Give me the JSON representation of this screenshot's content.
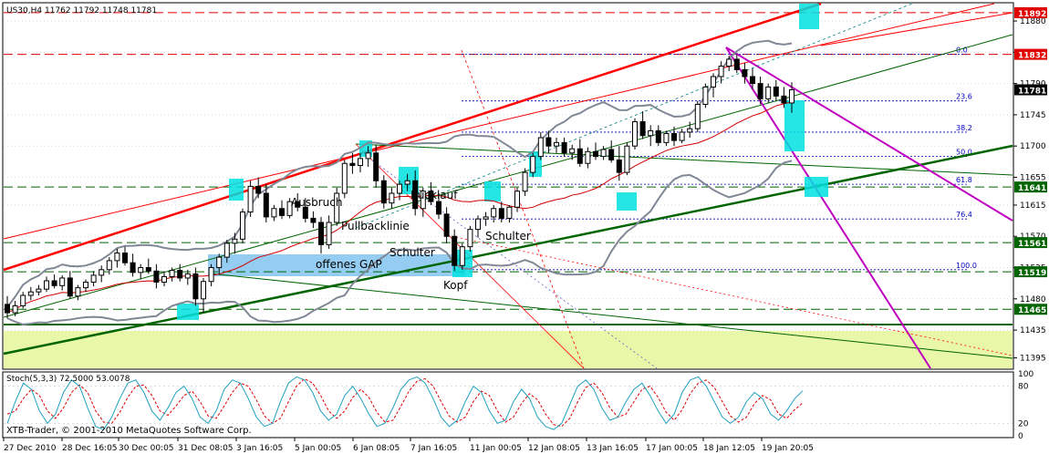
{
  "header": {
    "symbol_line": "US30,H4  11762 11792 11748 11781",
    "indicator_line": "Stoch(5,3,3) 72.5000 53.0078",
    "copyright": "XTB-Trader, © 2001-2010 MetaQuotes Software Corp."
  },
  "colors": {
    "background": "#ffffff",
    "frame": "#000000",
    "grid": "#c8c8c8",
    "candle_up": "#ffffff",
    "candle_down": "#000000",
    "resistance_red": "#ff0000",
    "support_green": "#006400",
    "trend_magenta": "#c000c0",
    "bollinger": "#808896",
    "highlight_cyan": "#00e0e0",
    "gap_blue": "#88c8f0",
    "zone_yellow": "#e8f8a8",
    "fib_blue": "#0000c0",
    "stoch_main": "#20a0c0",
    "stoch_signal": "#e00000"
  },
  "chart_data": {
    "type": "candlestick",
    "symbol": "US30",
    "timeframe": "H4",
    "ohlc_last": {
      "open": 11762,
      "high": 11792,
      "low": 11748,
      "close": 11781
    },
    "ylim": [
      11380,
      11905
    ],
    "y_ticks": [
      11880,
      11835,
      11790,
      11745,
      11700,
      11655,
      11615,
      11570,
      11525,
      11480,
      11435,
      11395
    ],
    "x_ticks": [
      "27 Dec 2010",
      "28 Dec 16:05",
      "30 Dec 00:05",
      "31 Dec 08:05",
      "3 Jan 16:05",
      "5 Jan 00:05",
      "6 Jan 08:05",
      "7 Jan 16:05",
      "11 Jan 00:05",
      "12 Jan 08:05",
      "13 Jan 16:05",
      "17 Jan 00:05",
      "18 Jan 12:05",
      "19 Jan 20:05"
    ],
    "price_levels": [
      {
        "label": "11892",
        "value": 11892,
        "color": "#e00000"
      },
      {
        "label": "11832",
        "value": 11832,
        "color": "#e00000"
      },
      {
        "label": "11781",
        "value": 11781,
        "color": "#000000"
      },
      {
        "label": "11641",
        "value": 11641,
        "color": "#006400"
      },
      {
        "label": "11561",
        "value": 11561,
        "color": "#006400"
      },
      {
        "label": "11519",
        "value": 11519,
        "color": "#006400"
      },
      {
        "label": "11465",
        "value": 11465,
        "color": "#006400"
      }
    ],
    "fibonacci": [
      {
        "label": "0.0",
        "value": 11832
      },
      {
        "label": "23.6",
        "value": 11765
      },
      {
        "label": "38.2",
        "value": 11720
      },
      {
        "label": "50.0",
        "value": 11685
      },
      {
        "label": "61.8",
        "value": 11645
      },
      {
        "label": "76.4",
        "value": 11595
      },
      {
        "label": "100.0",
        "value": 11522
      }
    ],
    "candles": [
      [
        11472,
        11484,
        11452,
        11460
      ],
      [
        11460,
        11477,
        11455,
        11470
      ],
      [
        11470,
        11490,
        11466,
        11485
      ],
      [
        11485,
        11497,
        11478,
        11490
      ],
      [
        11490,
        11500,
        11485,
        11494
      ],
      [
        11494,
        11512,
        11490,
        11506
      ],
      [
        11506,
        11515,
        11495,
        11499
      ],
      [
        11499,
        11514,
        11492,
        11510
      ],
      [
        11510,
        11520,
        11480,
        11484
      ],
      [
        11484,
        11500,
        11478,
        11496
      ],
      [
        11496,
        11508,
        11490,
        11504
      ],
      [
        11504,
        11520,
        11498,
        11514
      ],
      [
        11514,
        11528,
        11504,
        11522
      ],
      [
        11522,
        11540,
        11515,
        11535
      ],
      [
        11535,
        11552,
        11525,
        11546
      ],
      [
        11546,
        11555,
        11528,
        11532
      ],
      [
        11532,
        11545,
        11512,
        11518
      ],
      [
        11518,
        11530,
        11508,
        11525
      ],
      [
        11525,
        11538,
        11516,
        11520
      ],
      [
        11520,
        11530,
        11495,
        11504
      ],
      [
        11504,
        11520,
        11498,
        11512
      ],
      [
        11512,
        11525,
        11505,
        11521
      ],
      [
        11521,
        11530,
        11505,
        11510
      ],
      [
        11510,
        11522,
        11500,
        11516
      ],
      [
        11516,
        11525,
        11470,
        11480
      ],
      [
        11480,
        11510,
        11460,
        11505
      ],
      [
        11505,
        11530,
        11498,
        11525
      ],
      [
        11525,
        11545,
        11515,
        11540
      ],
      [
        11540,
        11565,
        11532,
        11560
      ],
      [
        11560,
        11575,
        11545,
        11566
      ],
      [
        11566,
        11610,
        11560,
        11605
      ],
      [
        11605,
        11650,
        11598,
        11642
      ],
      [
        11642,
        11655,
        11625,
        11632
      ],
      [
        11632,
        11645,
        11590,
        11598
      ],
      [
        11598,
        11615,
        11592,
        11610
      ],
      [
        11610,
        11622,
        11595,
        11600
      ],
      [
        11600,
        11625,
        11596,
        11620
      ],
      [
        11620,
        11632,
        11606,
        11612
      ],
      [
        11612,
        11625,
        11590,
        11596
      ],
      [
        11596,
        11606,
        11582,
        11590
      ],
      [
        11590,
        11598,
        11545,
        11558
      ],
      [
        11558,
        11600,
        11552,
        11590
      ],
      [
        11590,
        11640,
        11585,
        11632
      ],
      [
        11632,
        11680,
        11625,
        11675
      ],
      [
        11675,
        11690,
        11660,
        11672
      ],
      [
        11672,
        11690,
        11662,
        11682
      ],
      [
        11682,
        11700,
        11670,
        11690
      ],
      [
        11690,
        11702,
        11640,
        11650
      ],
      [
        11650,
        11658,
        11610,
        11618
      ],
      [
        11618,
        11640,
        11610,
        11632
      ],
      [
        11632,
        11650,
        11622,
        11645
      ],
      [
        11645,
        11660,
        11635,
        11650
      ],
      [
        11650,
        11665,
        11600,
        11610
      ],
      [
        11610,
        11640,
        11598,
        11635
      ],
      [
        11635,
        11648,
        11615,
        11620
      ],
      [
        11620,
        11632,
        11595,
        11602
      ],
      [
        11602,
        11612,
        11560,
        11570
      ],
      [
        11570,
        11580,
        11520,
        11528
      ],
      [
        11528,
        11560,
        11522,
        11555
      ],
      [
        11555,
        11585,
        11548,
        11580
      ],
      [
        11580,
        11600,
        11568,
        11595
      ],
      [
        11595,
        11605,
        11585,
        11598
      ],
      [
        11598,
        11615,
        11590,
        11610
      ],
      [
        11610,
        11620,
        11590,
        11596
      ],
      [
        11596,
        11615,
        11590,
        11612
      ],
      [
        11612,
        11640,
        11605,
        11635
      ],
      [
        11635,
        11668,
        11628,
        11662
      ],
      [
        11662,
        11690,
        11655,
        11685
      ],
      [
        11685,
        11720,
        11680,
        11712
      ],
      [
        11712,
        11722,
        11690,
        11700
      ],
      [
        11700,
        11712,
        11690,
        11705
      ],
      [
        11705,
        11712,
        11685,
        11690
      ],
      [
        11690,
        11702,
        11680,
        11696
      ],
      [
        11696,
        11710,
        11670,
        11675
      ],
      [
        11675,
        11698,
        11668,
        11692
      ],
      [
        11692,
        11705,
        11680,
        11685
      ],
      [
        11685,
        11700,
        11680,
        11695
      ],
      [
        11695,
        11708,
        11676,
        11680
      ],
      [
        11680,
        11700,
        11650,
        11662
      ],
      [
        11662,
        11705,
        11658,
        11700
      ],
      [
        11700,
        11740,
        11695,
        11735
      ],
      [
        11735,
        11750,
        11710,
        11715
      ],
      [
        11715,
        11730,
        11700,
        11722
      ],
      [
        11722,
        11730,
        11700,
        11705
      ],
      [
        11705,
        11722,
        11700,
        11718
      ],
      [
        11718,
        11728,
        11700,
        11708
      ],
      [
        11708,
        11725,
        11704,
        11720
      ],
      [
        11720,
        11735,
        11712,
        11725
      ],
      [
        11725,
        11765,
        11720,
        11760
      ],
      [
        11760,
        11790,
        11755,
        11785
      ],
      [
        11785,
        11805,
        11770,
        11800
      ],
      [
        11800,
        11822,
        11790,
        11815
      ],
      [
        11815,
        11830,
        11808,
        11825
      ],
      [
        11825,
        11832,
        11805,
        11810
      ],
      [
        11810,
        11820,
        11790,
        11800
      ],
      [
        11800,
        11812,
        11782,
        11790
      ],
      [
        11790,
        11800,
        11760,
        11768
      ],
      [
        11768,
        11790,
        11762,
        11785
      ],
      [
        11785,
        11795,
        11765,
        11772
      ],
      [
        11772,
        11785,
        11755,
        11762
      ],
      [
        11762,
        11792,
        11748,
        11781
      ]
    ],
    "stochastic": {
      "name": "Stoch(5,3,3)",
      "main": 72.5,
      "signal": 53.0078,
      "ylim": [
        0,
        100
      ],
      "y_ticks": [
        100,
        80,
        20,
        0
      ],
      "main_values": [
        20,
        55,
        85,
        75,
        40,
        20,
        35,
        70,
        90,
        80,
        45,
        15,
        10,
        30,
        60,
        85,
        90,
        70,
        40,
        25,
        45,
        70,
        80,
        60,
        30,
        20,
        40,
        75,
        90,
        85,
        60,
        30,
        15,
        20,
        55,
        85,
        95,
        90,
        70,
        40,
        25,
        35,
        65,
        80,
        60,
        35,
        15,
        20,
        45,
        75,
        90,
        95,
        85,
        60,
        30,
        15,
        25,
        55,
        80,
        70,
        40,
        20,
        25,
        55,
        75,
        60,
        30,
        15,
        10,
        20,
        50,
        80,
        90,
        75,
        45,
        25,
        30,
        55,
        75,
        85,
        65,
        40,
        20,
        35,
        70,
        90,
        95,
        80,
        55,
        30,
        20,
        30,
        55,
        70,
        60,
        35,
        25,
        40,
        60,
        72.5
      ],
      "signal_values": [
        35,
        40,
        60,
        75,
        65,
        40,
        28,
        45,
        70,
        82,
        70,
        40,
        22,
        20,
        38,
        62,
        80,
        82,
        65,
        40,
        33,
        48,
        65,
        72,
        55,
        32,
        28,
        48,
        70,
        85,
        80,
        58,
        32,
        20,
        28,
        55,
        80,
        92,
        85,
        65,
        40,
        28,
        40,
        62,
        75,
        62,
        38,
        22,
        25,
        48,
        72,
        88,
        92,
        80,
        55,
        32,
        22,
        30,
        55,
        72,
        65,
        40,
        22,
        30,
        52,
        68,
        58,
        35,
        18,
        15,
        28,
        55,
        78,
        85,
        70,
        45,
        30,
        35,
        55,
        75,
        80,
        62,
        38,
        25,
        42,
        68,
        85,
        90,
        78,
        55,
        32,
        22,
        30,
        52,
        65,
        58,
        35,
        28,
        42,
        53.0078
      ]
    },
    "annotations": [
      "Ausbruch",
      "Pullbacklinie",
      "Rücklauf",
      "Schulter",
      "Schulter",
      "Kopf",
      "offenes GAP"
    ]
  },
  "annotations": {
    "ausbruch": "Ausbruch",
    "pullback": "Pullbacklinie",
    "ruecklauf": "Rücklauf",
    "schulter_left": "Schulter",
    "schulter_right": "Schulter",
    "kopf": "Kopf",
    "gap": "offenes GAP"
  }
}
